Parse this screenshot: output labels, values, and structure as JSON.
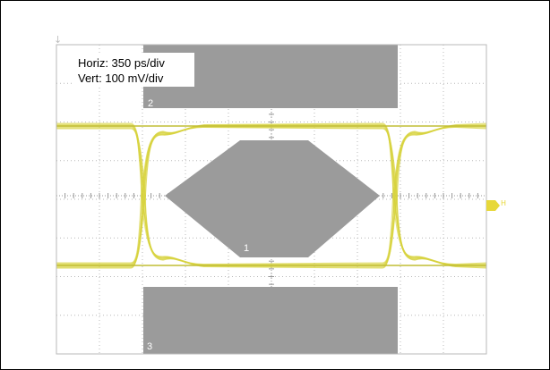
{
  "chart_data": {
    "type": "eye-diagram",
    "title": "",
    "settings": {
      "horizontal_scale": "Horiz: 350 ps/div",
      "vertical_scale": "Vert: 100 mV/div"
    },
    "grid": {
      "horizontal_divisions": 10,
      "vertical_divisions": 8,
      "visible": true
    },
    "masks": [
      {
        "id": "1",
        "label": "1",
        "region": "center"
      },
      {
        "id": "2",
        "label": "2",
        "region": "top"
      },
      {
        "id": "3",
        "label": "3",
        "region": "bottom"
      }
    ],
    "colors": {
      "trace": "#d7d23c",
      "mask": "#9b9b9b",
      "grid": "#b8b8b8",
      "background": "#ffffff"
    }
  }
}
